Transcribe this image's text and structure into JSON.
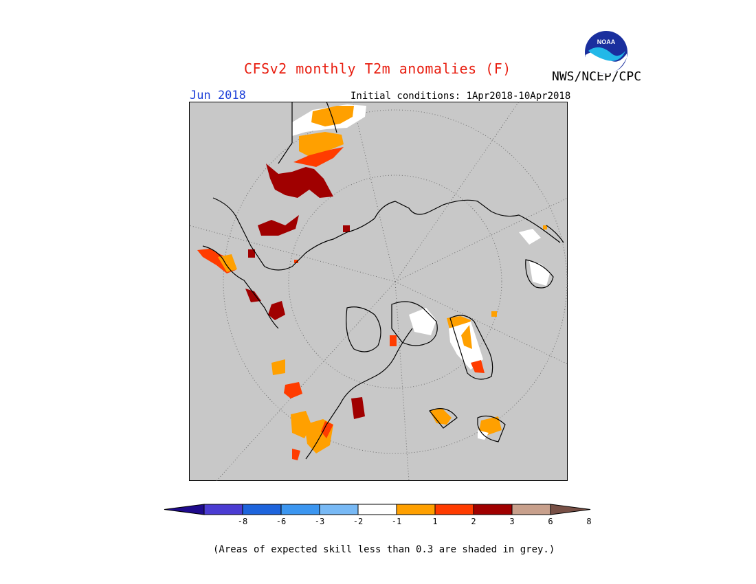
{
  "header": {
    "title": "CFSv2 monthly T2m anomalies (F)",
    "agency": "NWS/NCEP/CPC",
    "target_month": "Jun 2018",
    "initial_conditions": "Initial conditions: 1Apr2018-10Apr2018",
    "logo_text": "NOAA"
  },
  "map": {
    "projection": "north polar stereographic",
    "background_color": "#c8c8c8",
    "skill_mask_color": "#c8c8c8"
  },
  "legend": {
    "colors": [
      "#1e0a8c",
      "#4b3cd2",
      "#1e64dc",
      "#3c96f0",
      "#78b9f5",
      "#ffffff",
      "#ffa000",
      "#ff3c00",
      "#a00000",
      "#c8a08c",
      "#785046"
    ],
    "tick_labels": [
      "-8",
      "-6",
      "-3",
      "-2",
      "-1",
      "1",
      "2",
      "3",
      "6",
      "8"
    ]
  },
  "footnote": "(Areas of expected skill less than 0.3 are shaded in grey.)"
}
